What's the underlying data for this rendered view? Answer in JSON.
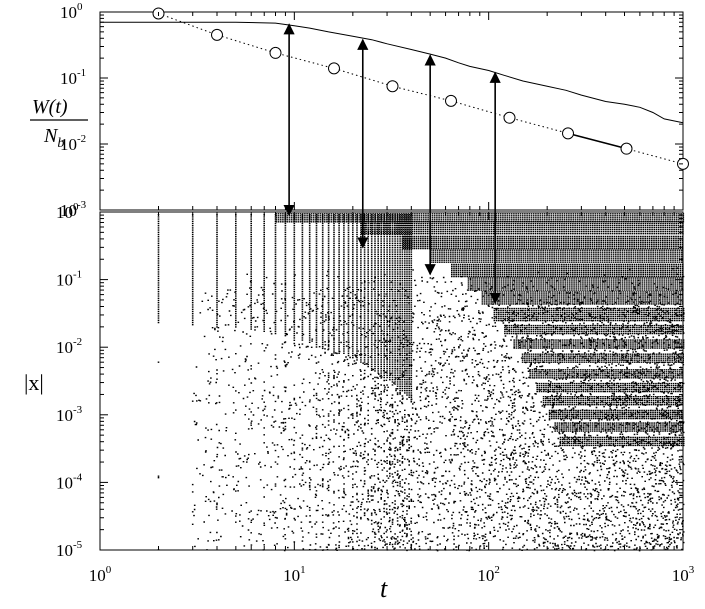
{
  "chart_data": [
    {
      "panel": "top",
      "type": "line",
      "xscale": "log",
      "yscale": "log",
      "xlim": [
        1,
        1000
      ],
      "ylim": [
        0.001,
        1
      ],
      "ylabel_num": "W(t)",
      "ylabel_den": "N",
      "ylabel_den_sub": "b",
      "yticks": [
        {
          "value": 1,
          "base": "10",
          "exp": "0"
        },
        {
          "value": 0.1,
          "base": "10",
          "exp": "-1"
        },
        {
          "value": 0.01,
          "base": "10",
          "exp": "-2"
        },
        {
          "value": 0.001,
          "base": "10",
          "exp": "-3"
        }
      ],
      "series": [
        {
          "style": "solid",
          "x": [
            1,
            2,
            3,
            5,
            8,
            10,
            12,
            15,
            20,
            25,
            30,
            40,
            50,
            60,
            70,
            80,
            100,
            120,
            150,
            200,
            250,
            300,
            400,
            500,
            600,
            700,
            800,
            1000
          ],
          "y": [
            0.7,
            0.7,
            0.7,
            0.7,
            0.68,
            0.62,
            0.57,
            0.5,
            0.43,
            0.38,
            0.33,
            0.27,
            0.23,
            0.2,
            0.17,
            0.15,
            0.13,
            0.11,
            0.09,
            0.075,
            0.065,
            0.055,
            0.044,
            0.04,
            0.036,
            0.03,
            0.024,
            0.021
          ]
        },
        {
          "style": "dotted-circles",
          "x": [
            2,
            4,
            8,
            16,
            32,
            64,
            128,
            256,
            512,
            1000
          ],
          "y": [
            0.95,
            0.45,
            0.24,
            0.14,
            0.075,
            0.045,
            0.025,
            0.0145,
            0.0085,
            0.005
          ]
        }
      ]
    },
    {
      "panel": "bottom",
      "type": "scatter",
      "xscale": "log",
      "yscale": "log",
      "xlim": [
        1,
        1000
      ],
      "ylim": [
        1e-05,
        1
      ],
      "xlabel": "t",
      "ylabel": "|x|",
      "xticks": [
        {
          "value": 1,
          "base": "10",
          "exp": "0"
        },
        {
          "value": 10,
          "base": "10",
          "exp": "1"
        },
        {
          "value": 100,
          "base": "10",
          "exp": "2"
        },
        {
          "value": 1000,
          "base": "10",
          "exp": "3"
        }
      ],
      "yticks": [
        {
          "value": 1,
          "base": "10",
          "exp": "0"
        },
        {
          "value": 0.1,
          "base": "10",
          "exp": "-1"
        },
        {
          "value": 0.01,
          "base": "10",
          "exp": "-2"
        },
        {
          "value": 0.001,
          "base": "10",
          "exp": "-3"
        },
        {
          "value": 0.0001,
          "base": "10",
          "exp": "-4"
        },
        {
          "value": 1e-05,
          "base": "10",
          "exp": "-5"
        }
      ],
      "bands_y": [
        0.87,
        0.58,
        0.35,
        0.22,
        0.135,
        0.085,
        0.053,
        0.03,
        0.018,
        0.011,
        0.0068,
        0.004,
        0.0025,
        0.0016,
        0.001,
        0.00065,
        0.0004
      ]
    }
  ],
  "arrows": [
    {
      "x": 9.4,
      "y_from": 0.9,
      "y_to": 0.65
    },
    {
      "x": 22.5,
      "y_from": 0.3,
      "y_to": 0.38
    },
    {
      "x": 50,
      "y_from": 0.12,
      "y_to": 0.22
    },
    {
      "x": 108,
      "y_from": 0.045,
      "y_to": 0.12
    }
  ]
}
